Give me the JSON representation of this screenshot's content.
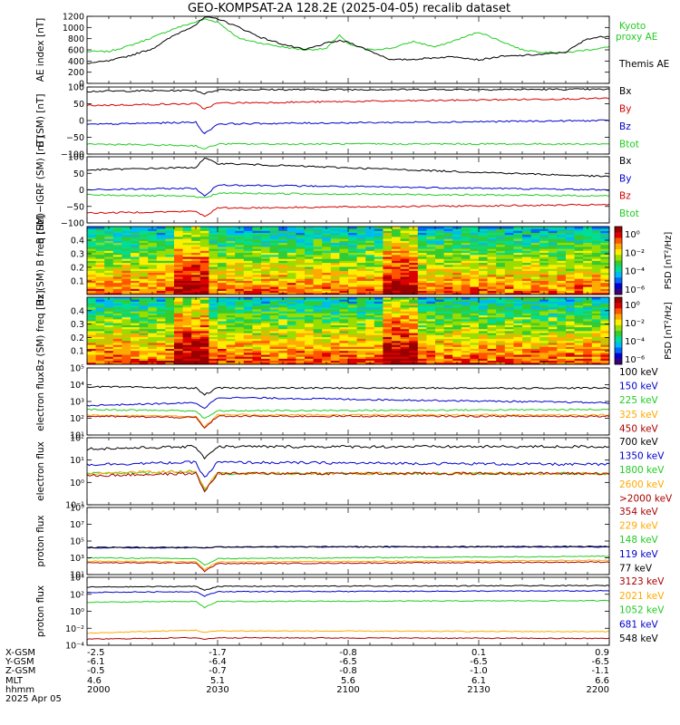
{
  "title": "GEO-KOMPSAT-2A 128.2E (2025-04-05) recalib dataset",
  "colors": {
    "black": "#000000",
    "red": "#d40000",
    "blue": "#0000cc",
    "green": "#22cc22",
    "orange": "#ffaa00",
    "darkred": "#aa0000"
  },
  "colorbars": [
    {
      "label": "PSD [nT²/Hz]",
      "ticks": [
        "10⁰",
        "10⁻²",
        "10⁻⁴",
        "10⁻⁶"
      ]
    },
    {
      "label": "PSD [nT²/Hz]",
      "ticks": [
        "10⁰",
        "10⁻²",
        "10⁻⁴",
        "10⁻⁶"
      ]
    }
  ],
  "footer": {
    "row_labels": [
      "X-GSM",
      "Y-GSM",
      "Z-GSM",
      "MLT",
      "hhmm",
      "2025 Apr 05"
    ],
    "columns": [
      [
        "-2.5",
        "-6.1",
        "-0.5",
        "4.6",
        "2000"
      ],
      [
        "-1.7",
        "-6.4",
        "-0.7",
        "5.1",
        "2030"
      ],
      [
        "-0.8",
        "-6.5",
        "-0.8",
        "5.6",
        "2100"
      ],
      [
        "0.1",
        "-6.5",
        "-1.0",
        "6.1",
        "2130"
      ],
      [
        "0.9",
        "-6.5",
        "-1.1",
        "6.6",
        "2200"
      ]
    ]
  },
  "chart_data": [
    {
      "type": "line",
      "ylabel": "AE index [nT]",
      "ylim": [
        0,
        1200
      ],
      "yticks": [
        0,
        200,
        400,
        600,
        800,
        1000,
        1200
      ],
      "ytick_labels": [
        "0",
        "200",
        "400",
        "600",
        "800",
        "1000",
        "1200"
      ],
      "series": [
        {
          "name": "Kyoto proxy AE",
          "color": "#22cc22",
          "x": [
            2000,
            2005,
            2010,
            2015,
            2020,
            2025,
            2027,
            2030,
            2035,
            2040,
            2045,
            2050,
            2055,
            2058,
            2100,
            2105,
            2110,
            2115,
            2120,
            2125,
            2130,
            2135,
            2140,
            2145,
            2150,
            2155,
            2200
          ],
          "y": [
            570,
            570,
            680,
            820,
            980,
            1100,
            1150,
            1100,
            800,
            720,
            650,
            600,
            620,
            870,
            700,
            600,
            630,
            750,
            650,
            780,
            920,
            760,
            600,
            560,
            550,
            600,
            650
          ]
        },
        {
          "name": "Themis AE",
          "color": "#000000",
          "x": [
            2000,
            2005,
            2010,
            2015,
            2020,
            2025,
            2027,
            2030,
            2035,
            2040,
            2045,
            2050,
            2055,
            2058,
            2100,
            2105,
            2110,
            2115,
            2120,
            2125,
            2130,
            2135,
            2140,
            2145,
            2150,
            2155,
            2200
          ],
          "y": [
            360,
            400,
            500,
            620,
            860,
            1050,
            1180,
            1160,
            1000,
            820,
            700,
            600,
            720,
            760,
            740,
            580,
            420,
            430,
            460,
            480,
            420,
            480,
            500,
            520,
            560,
            800,
            850
          ]
        }
      ]
    },
    {
      "type": "line",
      "ylabel": "B (SM) [nT]",
      "ylim": [
        -100,
        100
      ],
      "yticks": [
        -100,
        -50,
        0,
        50,
        100
      ],
      "ytick_labels": [
        "−100",
        "−50",
        "0",
        "50",
        "100"
      ],
      "series": [
        {
          "name": "Bx",
          "color": "#000000",
          "x": [
            2000,
            2025,
            2027,
            2030,
            2200
          ],
          "y": [
            87,
            90,
            80,
            92,
            93
          ]
        },
        {
          "name": "By",
          "color": "#d40000",
          "x": [
            2000,
            2025,
            2027,
            2030,
            2200
          ],
          "y": [
            45,
            50,
            35,
            52,
            66
          ]
        },
        {
          "name": "Bz",
          "color": "#0000cc",
          "x": [
            2000,
            2025,
            2027,
            2030,
            2200
          ],
          "y": [
            -12,
            -5,
            -40,
            -10,
            0
          ]
        },
        {
          "name": "Btot",
          "color": "#22cc22",
          "x": [
            2000,
            2025,
            2027,
            2030,
            2200
          ],
          "y": [
            -70,
            -75,
            -85,
            -70,
            -70
          ]
        }
      ]
    },
    {
      "type": "line",
      "ylabel": "B (SM)−IGRF (SM) [nT]",
      "ylim": [
        -100,
        100
      ],
      "yticks": [
        -100,
        -50,
        0,
        50,
        100
      ],
      "ytick_labels": [
        "−100",
        "−50",
        "0",
        "50",
        "100"
      ],
      "series": [
        {
          "name": "Bx",
          "color": "#000000",
          "x": [
            2000,
            2025,
            2027,
            2030,
            2200
          ],
          "y": [
            60,
            68,
            95,
            80,
            40
          ]
        },
        {
          "name": "By",
          "color": "#0000cc",
          "x": [
            2000,
            2025,
            2027,
            2030,
            2200
          ],
          "y": [
            0,
            5,
            -20,
            15,
            0
          ]
        },
        {
          "name": "Bz",
          "color": "#d40000",
          "x": [
            2000,
            2025,
            2027,
            2030,
            2200
          ],
          "y": [
            -70,
            -65,
            -80,
            -55,
            -45
          ]
        },
        {
          "name": "Btot",
          "color": "#22cc22",
          "x": [
            2000,
            2025,
            2027,
            2030,
            2200
          ],
          "y": [
            -15,
            -20,
            -25,
            -10,
            -18
          ]
        }
      ]
    },
    {
      "type": "heatmap",
      "ylabel": "Bx (SM) B freq [Hz]",
      "ylim": [
        0,
        0.5
      ],
      "yticks": [
        0.1,
        0.2,
        0.3,
        0.4
      ],
      "ytick_labels": [
        "0.1",
        "0.2",
        "0.3",
        "0.4"
      ],
      "colorbar": "PSD [nT²/Hz]"
    },
    {
      "type": "heatmap",
      "ylabel": "Bz (SM) freq [Hz]",
      "ylim": [
        0,
        0.5
      ],
      "yticks": [
        0.1,
        0.2,
        0.3,
        0.4
      ],
      "ytick_labels": [
        "0.1",
        "0.2",
        "0.3",
        "0.4"
      ],
      "colorbar": "PSD [nT²/Hz]"
    },
    {
      "type": "line",
      "ylabel": "electron flux",
      "log": true,
      "ylim": [
        1,
        6
      ],
      "ytick_labels": [
        "10¹",
        "10²",
        "10³",
        "10⁴",
        "10⁵"
      ],
      "series": [
        {
          "name": "100 keV",
          "color": "#000000",
          "x": [
            2000,
            2025,
            2027,
            2030,
            2200
          ],
          "y": [
            4.6,
            4.5,
            4.0,
            4.5,
            4.5
          ]
        },
        {
          "name": "150 keV",
          "color": "#0000cc",
          "x": [
            2000,
            2025,
            2027,
            2030,
            2200
          ],
          "y": [
            3.2,
            3.4,
            3.0,
            3.8,
            3.4
          ]
        },
        {
          "name": "225 keV",
          "color": "#22cc22",
          "x": [
            2000,
            2025,
            2027,
            2030,
            2200
          ],
          "y": [
            2.9,
            2.8,
            2.2,
            2.8,
            2.9
          ]
        },
        {
          "name": "325 keV",
          "color": "#ffaa00",
          "x": [
            2000,
            2025,
            2027,
            2030,
            2200
          ],
          "y": [
            2.5,
            2.4,
            1.6,
            2.5,
            2.5
          ]
        },
        {
          "name": "450 keV",
          "color": "#aa0000",
          "x": [
            2000,
            2025,
            2027,
            2030,
            2200
          ],
          "y": [
            2.4,
            2.3,
            1.5,
            2.4,
            2.4
          ]
        }
      ]
    },
    {
      "type": "line",
      "ylabel": "electron flux",
      "log": true,
      "ylim": [
        -1,
        2
      ],
      "ytick_labels": [
        "10⁻¹",
        "10⁰",
        "10¹",
        "10²"
      ],
      "series": [
        {
          "name": "700 keV",
          "color": "#000000",
          "x": [
            2000,
            2025,
            2027,
            2030,
            2200
          ],
          "y": [
            1.5,
            1.6,
            1.1,
            1.6,
            1.6
          ]
        },
        {
          "name": "1350 keV",
          "color": "#0000cc",
          "x": [
            2000,
            2025,
            2027,
            2030,
            2200
          ],
          "y": [
            0.8,
            0.9,
            0.2,
            0.9,
            0.8
          ]
        },
        {
          "name": "1800 keV",
          "color": "#22cc22",
          "x": [
            2000,
            2025,
            2027,
            2030,
            2200
          ],
          "y": [
            0.4,
            0.5,
            -0.3,
            0.4,
            0.4
          ]
        },
        {
          "name": "2600 keV",
          "color": "#ffaa00",
          "x": [
            2000,
            2025,
            2027,
            2030,
            2200
          ],
          "y": [
            0.4,
            0.5,
            -0.3,
            0.4,
            0.4
          ]
        },
        {
          "name": ">2000 keV",
          "color": "#aa0000",
          "x": [
            2000,
            2025,
            2027,
            2030,
            2200
          ],
          "y": [
            0.3,
            0.4,
            -0.4,
            0.4,
            0.4
          ]
        }
      ]
    },
    {
      "type": "line",
      "ylabel": "proton flux",
      "log": true,
      "ylim": [
        1,
        9
      ],
      "ytick_labels": [
        "10¹",
        "10³",
        "10⁵",
        "10⁷",
        "10⁹"
      ],
      "series": [
        {
          "name": "354 keV",
          "color": "#aa0000",
          "x": [
            2000,
            2025,
            2027,
            2030,
            2200
          ],
          "y": [
            2.4,
            2.4,
            1.4,
            2.3,
            2.5
          ]
        },
        {
          "name": "229 keV",
          "color": "#ffaa00",
          "x": [
            2000,
            2025,
            2027,
            2030,
            2200
          ],
          "y": [
            2.6,
            2.5,
            1.6,
            2.5,
            2.7
          ]
        },
        {
          "name": "148 keV",
          "color": "#22cc22",
          "x": [
            2000,
            2025,
            2027,
            2030,
            2200
          ],
          "y": [
            3.0,
            2.9,
            2.1,
            2.9,
            3.2
          ]
        },
        {
          "name": "119 keV",
          "color": "#0000cc",
          "x": [
            2000,
            2025,
            2027,
            2030,
            2200
          ],
          "y": [
            4.2,
            4.2,
            4.2,
            4.3,
            4.3
          ]
        },
        {
          "name": "77 keV",
          "color": "#000000",
          "x": [
            2000,
            2025,
            2027,
            2030,
            2200
          ],
          "y": [
            4.25,
            4.25,
            4.2,
            4.3,
            4.35
          ]
        }
      ]
    },
    {
      "type": "line",
      "ylabel": "proton flux",
      "log": true,
      "ylim": [
        -5,
        4
      ],
      "ytick_labels": [
        "10⁻⁴",
        "10⁻²",
        "10⁰",
        "10²",
        "10⁴"
      ],
      "series": [
        {
          "name": "3123 keV",
          "color": "#aa0000",
          "x": [
            2000,
            2025,
            2027,
            2030,
            2200
          ],
          "y": [
            -4.2,
            -4.0,
            -4.2,
            -4.0,
            -4.1
          ]
        },
        {
          "name": "2021 keV",
          "color": "#ffaa00",
          "x": [
            2000,
            2025,
            2027,
            2030,
            2200
          ],
          "y": [
            -3.4,
            -3.0,
            -3.3,
            -3.1,
            -3.2
          ]
        },
        {
          "name": "1052 keV",
          "color": "#22cc22",
          "x": [
            2000,
            2025,
            2027,
            2030,
            2200
          ],
          "y": [
            0.7,
            0.8,
            0.0,
            0.8,
            0.9
          ]
        },
        {
          "name": "681 keV",
          "color": "#0000cc",
          "x": [
            2000,
            2025,
            2027,
            2030,
            2200
          ],
          "y": [
            2.0,
            2.1,
            1.5,
            2.1,
            2.2
          ]
        },
        {
          "name": "548 keV",
          "color": "#000000",
          "x": [
            2000,
            2025,
            2027,
            2030,
            2200
          ],
          "y": [
            2.7,
            2.8,
            2.3,
            2.8,
            2.9
          ]
        }
      ]
    }
  ]
}
